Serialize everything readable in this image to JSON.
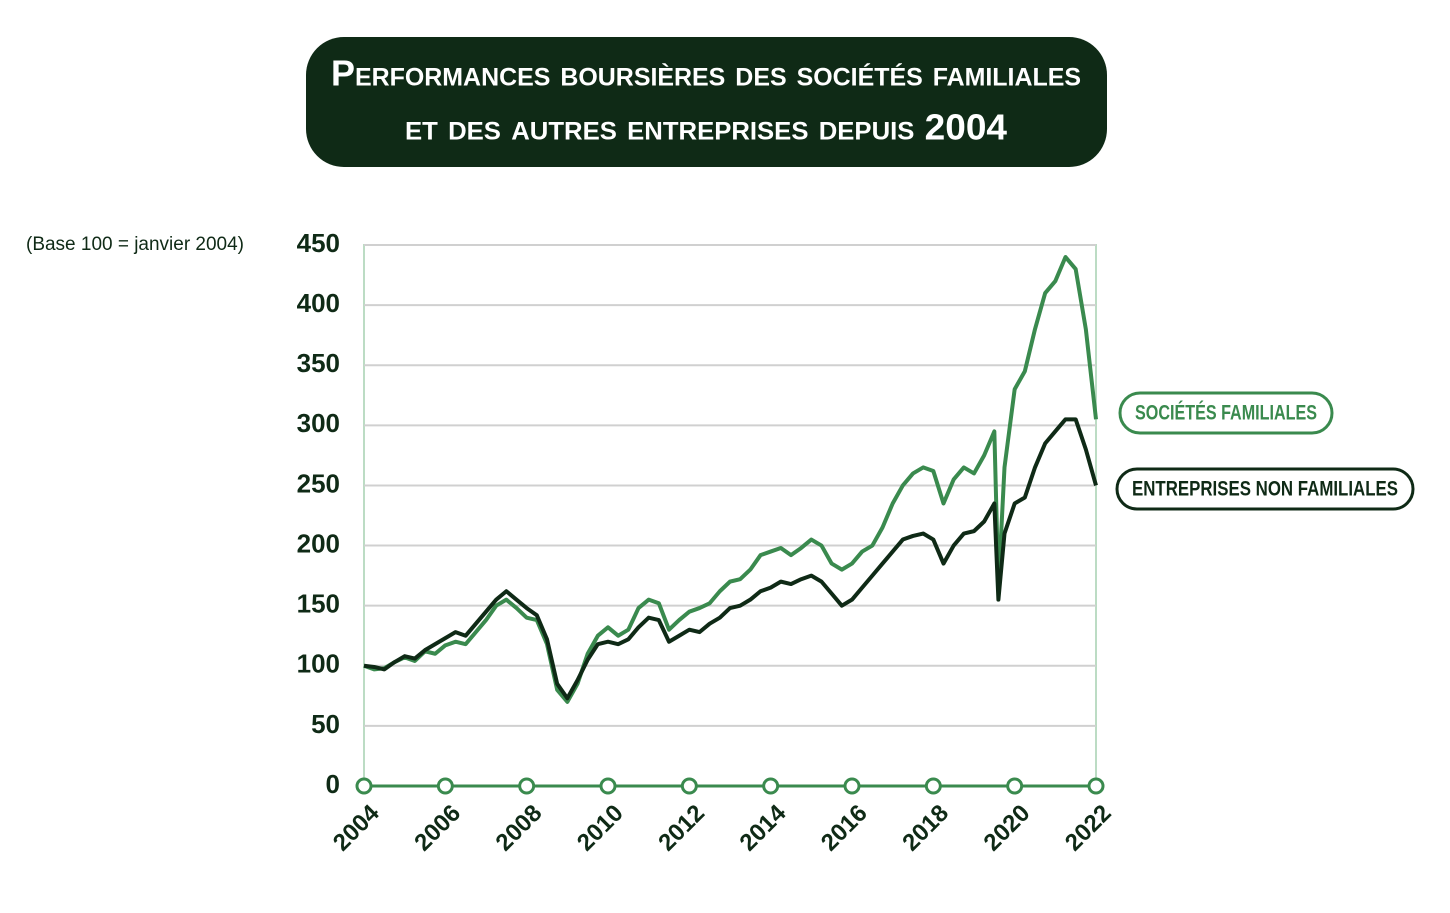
{
  "chart_data": {
    "type": "line",
    "title": [
      "Performances boursières des sociétés familiales",
      "et des autres entreprises depuis 2004"
    ],
    "subtitle": "(Base 100 = janvier 2004)",
    "x": [
      2004,
      2004.25,
      2004.5,
      2004.75,
      2005,
      2005.25,
      2005.5,
      2005.75,
      2006,
      2006.25,
      2006.5,
      2006.75,
      2007,
      2007.25,
      2007.5,
      2007.75,
      2008,
      2008.25,
      2008.5,
      2008.75,
      2009,
      2009.25,
      2009.5,
      2009.75,
      2010,
      2010.25,
      2010.5,
      2010.75,
      2011,
      2011.25,
      2011.5,
      2011.75,
      2012,
      2012.25,
      2012.5,
      2012.75,
      2013,
      2013.25,
      2013.5,
      2013.75,
      2014,
      2014.25,
      2014.5,
      2014.75,
      2015,
      2015.25,
      2015.5,
      2015.75,
      2016,
      2016.25,
      2016.5,
      2016.75,
      2017,
      2017.25,
      2017.5,
      2017.75,
      2018,
      2018.25,
      2018.5,
      2018.75,
      2019,
      2019.25,
      2019.5,
      2019.6,
      2019.75,
      2020,
      2020.25,
      2020.5,
      2020.75,
      2021,
      2021.25,
      2021.5,
      2021.75,
      2022
    ],
    "series": [
      {
        "name": "SOCIÉTÉS FAMILIALES",
        "color": "#3a8a4e",
        "values": [
          100,
          97,
          98,
          103,
          107,
          104,
          112,
          110,
          117,
          120,
          118,
          128,
          138,
          150,
          155,
          148,
          140,
          138,
          118,
          80,
          70,
          85,
          110,
          125,
          132,
          125,
          130,
          148,
          155,
          152,
          130,
          138,
          145,
          148,
          152,
          162,
          170,
          172,
          180,
          192,
          195,
          198,
          192,
          198,
          205,
          200,
          185,
          180,
          185,
          195,
          200,
          215,
          235,
          250,
          260,
          265,
          262,
          235,
          255,
          265,
          260,
          275,
          295,
          165,
          265,
          330,
          345,
          380,
          410,
          420,
          440,
          430,
          380,
          305
        ]
      },
      {
        "name": "ENTREPRISES NON FAMILIALES",
        "color": "#0f2a16",
        "values": [
          100,
          99,
          97,
          103,
          108,
          106,
          113,
          118,
          123,
          128,
          125,
          135,
          145,
          155,
          162,
          155,
          148,
          142,
          122,
          85,
          73,
          88,
          105,
          118,
          120,
          118,
          122,
          132,
          140,
          138,
          120,
          125,
          130,
          128,
          135,
          140,
          148,
          150,
          155,
          162,
          165,
          170,
          168,
          172,
          175,
          170,
          160,
          150,
          155,
          165,
          175,
          185,
          195,
          205,
          208,
          210,
          205,
          185,
          200,
          210,
          212,
          220,
          235,
          155,
          210,
          235,
          240,
          265,
          285,
          295,
          305,
          305,
          280,
          250
        ]
      }
    ],
    "xlim": [
      2004,
      2022
    ],
    "xticks": [
      2004,
      2006,
      2008,
      2010,
      2012,
      2014,
      2016,
      2018,
      2020,
      2022
    ],
    "ylim": [
      0,
      450
    ],
    "yticks": [
      0,
      50,
      100,
      150,
      200,
      250,
      300,
      350,
      400,
      450
    ],
    "grid": true
  }
}
